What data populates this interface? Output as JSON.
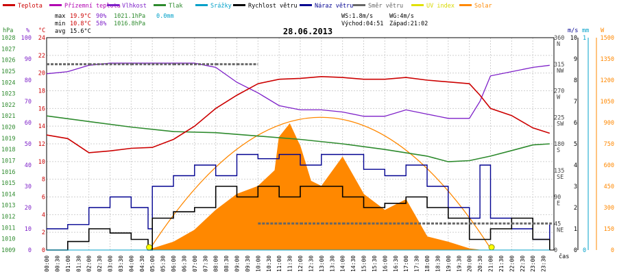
{
  "chart_data": {
    "type": "line",
    "title": "28.06.2013",
    "x_axis_label": "čas",
    "legend": [
      {
        "label": "Teplota",
        "color": "#cc0000"
      },
      {
        "label": "Přízemní teplota",
        "color": "#b000b0"
      },
      {
        "label": "Vlhkost",
        "color": "#7d1fc8"
      },
      {
        "label": "Tlak",
        "color": "#2d8a2d"
      },
      {
        "label": "Srážky",
        "color": "#00a0c8"
      },
      {
        "label": "Rychlost větru",
        "color": "#000000"
      },
      {
        "label": "Náraz větru",
        "color": "#000090"
      },
      {
        "label": "Směr větru",
        "color": "#666666"
      },
      {
        "label": "UV index",
        "color": "#e0e000"
      },
      {
        "label": "Solar",
        "color": "#ff8800"
      }
    ],
    "stats": {
      "max_label": "max",
      "max_temp": "19.9°C",
      "max_hum": "90%",
      "max_press": "1021.1hPa",
      "max_rain": "0.0mm",
      "min_label": "min",
      "min_temp": "10.8°C",
      "min_hum": "58%",
      "min_press": "1016.8hPa",
      "avg_label": "avg",
      "avg_temp": "15.6°C",
      "ws": "WS:1.8m/s",
      "wg": "WG:4m/s",
      "sunrise": "Východ:04:51",
      "sunset": "Západ:21:02"
    },
    "axes": {
      "pressure": {
        "unit": "hPa",
        "range": [
          1009,
          1028
        ],
        "ticks": [
          1028,
          1027,
          1026,
          1025,
          1024,
          1023,
          1022,
          1021,
          1020,
          1019,
          1018,
          1017,
          1016,
          1015,
          1014,
          1013,
          1012,
          1011,
          1010,
          1009
        ]
      },
      "humidity": {
        "unit": "%",
        "range": [
          0,
          100
        ],
        "ticks": [
          100,
          90,
          80,
          70,
          60,
          50,
          40,
          30,
          20,
          10,
          0
        ]
      },
      "temperature": {
        "unit": "°C",
        "range": [
          0,
          24
        ],
        "ticks": [
          24,
          22,
          20,
          18,
          16,
          14,
          12,
          10,
          8,
          6,
          4,
          2,
          0
        ]
      },
      "wind_direction": {
        "ticks": [
          "360",
          "315",
          "270",
          "225",
          "180",
          "135",
          "90",
          "45",
          "0"
        ],
        "cardinals": [
          "N",
          "NW",
          "W",
          "SW",
          "S",
          "SE",
          "E",
          "NE",
          ""
        ]
      },
      "wind_speed": {
        "unit": "m/s",
        "range": [
          0,
          10
        ],
        "ticks": [
          "10",
          "9",
          "8",
          "7",
          "6",
          "5",
          "4",
          "3",
          "2",
          "1",
          "0"
        ]
      },
      "rain": {
        "unit": "mm",
        "range": [
          0,
          1
        ],
        "ticks": [
          "1",
          "",
          "",
          "",
          "",
          "",
          "",
          "",
          "",
          "",
          "0"
        ]
      },
      "solar": {
        "unit": "W",
        "range": [
          0,
          1600
        ],
        "ticks": [
          "1500",
          "1350",
          "1200",
          "1050",
          "900",
          "750",
          "600",
          "450",
          "300",
          "150",
          "0"
        ]
      }
    },
    "time_ticks": [
      "00:00",
      "00:30",
      "01:00",
      "01:30",
      "02:00",
      "02:30",
      "03:00",
      "03:30",
      "04:00",
      "04:30",
      "05:00",
      "05:30",
      "06:00",
      "06:30",
      "07:00",
      "07:30",
      "08:00",
      "08:30",
      "09:00",
      "09:30",
      "10:00",
      "10:30",
      "11:00",
      "11:30",
      "12:00",
      "12:30",
      "13:00",
      "13:30",
      "14:00",
      "14:30",
      "15:00",
      "15:30",
      "16:00",
      "16:30",
      "17:00",
      "17:30",
      "18:00",
      "18:30",
      "19:00",
      "19:30",
      "20:00",
      "20:30",
      "21:00",
      "21:30",
      "22:00",
      "22:30",
      "23:00",
      "23:30"
    ],
    "series": {
      "temperature_c": {
        "hours": [
          0,
          1,
          2,
          3,
          4,
          5,
          6,
          7,
          8,
          9,
          10,
          11,
          12,
          13,
          14,
          15,
          16,
          17,
          18,
          19,
          20,
          20.5,
          21,
          22,
          23,
          23.8
        ],
        "values": [
          13.0,
          12.6,
          11.0,
          11.2,
          11.5,
          11.6,
          12.5,
          14.0,
          16.0,
          17.5,
          18.8,
          19.3,
          19.4,
          19.6,
          19.5,
          19.3,
          19.3,
          19.5,
          19.2,
          19.0,
          18.8,
          17.5,
          16.0,
          15.2,
          13.8,
          13.2
        ]
      },
      "humidity_pct": {
        "hours": [
          0,
          1,
          2,
          3,
          4,
          5,
          6,
          7,
          8,
          9,
          10,
          11,
          12,
          13,
          14,
          15,
          16,
          17,
          18,
          19,
          20,
          20.5,
          21,
          22,
          23,
          23.8
        ],
        "values": [
          83,
          84,
          87,
          88,
          88,
          88,
          88,
          88,
          86,
          79,
          74,
          68,
          66,
          66,
          65,
          63,
          63,
          66,
          64,
          62,
          62,
          70,
          82,
          84,
          86,
          87
        ]
      },
      "pressure_hpa": {
        "hours": [
          0,
          2,
          4,
          6,
          8,
          10,
          12,
          14,
          16,
          18,
          19,
          20,
          21,
          22,
          23,
          23.8
        ],
        "values": [
          1021.0,
          1020.5,
          1020.0,
          1019.6,
          1019.5,
          1019.2,
          1018.9,
          1018.5,
          1018.0,
          1017.4,
          1016.9,
          1017.0,
          1017.4,
          1017.9,
          1018.4,
          1018.5
        ]
      },
      "wind_speed_ms": {
        "hours": [
          0,
          1,
          2,
          3,
          4,
          4.8,
          5,
          6,
          7,
          8,
          9,
          10,
          11,
          12,
          13,
          14,
          15,
          16,
          17,
          18,
          19,
          20,
          21,
          22,
          23,
          23.8
        ],
        "values": [
          0,
          0.4,
          1,
          0.8,
          0.5,
          0,
          1.5,
          1.8,
          2,
          3,
          2.5,
          3,
          2.5,
          3,
          3,
          2.5,
          2,
          2.2,
          2.5,
          2,
          1.5,
          0.5,
          1,
          1.5,
          0.5,
          0
        ]
      },
      "wind_gust_ms": {
        "hours": [
          0,
          1,
          2,
          3,
          4,
          4.8,
          5,
          6,
          7,
          8,
          9,
          10,
          11,
          12,
          13,
          14,
          15,
          16,
          17,
          18,
          19,
          20,
          20.5,
          21,
          22,
          23,
          23.8
        ],
        "values": [
          1,
          1.2,
          2,
          2.5,
          2,
          1,
          3,
          3.5,
          4,
          3.5,
          4.5,
          4.3,
          4.5,
          4,
          4.5,
          4.5,
          3.8,
          3.5,
          4,
          3,
          2,
          1.5,
          4,
          1.5,
          1,
          0.5,
          1.2
        ]
      },
      "solar_wm2": {
        "hours": [
          4.8,
          6,
          7,
          8,
          9,
          10,
          10.8,
          11,
          11.5,
          12,
          12.5,
          13,
          14,
          15,
          16,
          17,
          18,
          19,
          20,
          20.5
        ],
        "values": [
          0,
          60,
          150,
          300,
          420,
          480,
          600,
          850,
          950,
          780,
          520,
          480,
          700,
          420,
          300,
          380,
          100,
          60,
          10,
          0
        ]
      },
      "solar_theoretical_wm2": {
        "hours": [
          4.85,
          13.0,
          21.05
        ],
        "values": [
          0,
          1000,
          0
        ]
      },
      "wind_direction_deg": {
        "hours": [
          0,
          2,
          4,
          6,
          8,
          9,
          10,
          11,
          12,
          13,
          14,
          15,
          16,
          17,
          18,
          19,
          20,
          21,
          22,
          23
        ],
        "values": [
          315,
          315,
          315,
          315,
          315,
          315,
          45,
          45,
          45,
          45,
          45,
          45,
          45,
          45,
          45,
          45,
          45,
          45,
          45,
          45
        ]
      },
      "uv_index": {
        "hours": [
          4.85,
          21.05
        ],
        "values": [
          0,
          0
        ]
      },
      "rain_mm": {
        "hours": [
          0,
          23.8
        ],
        "values": [
          0,
          0
        ]
      }
    }
  }
}
